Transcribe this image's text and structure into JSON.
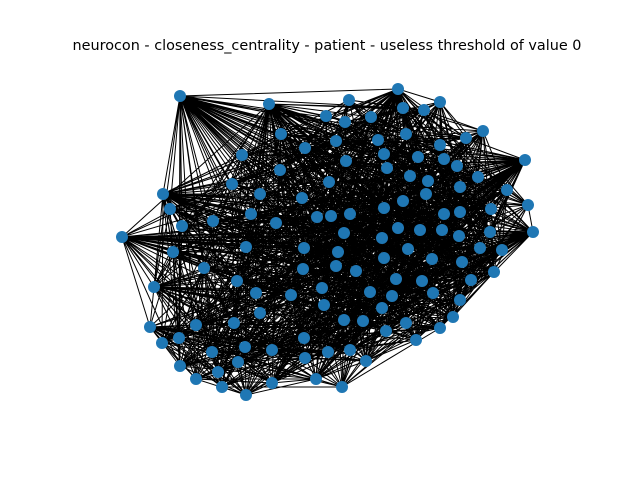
{
  "title": "neurocon - closeness_centrality - patient - useless threshold of value 0",
  "colors": {
    "background": "#ffffff",
    "node": "#1f77b4",
    "edge": "#000000"
  },
  "graph": {
    "layout": "force-directed",
    "edge_style": "straight",
    "node_count": 114
  }
}
